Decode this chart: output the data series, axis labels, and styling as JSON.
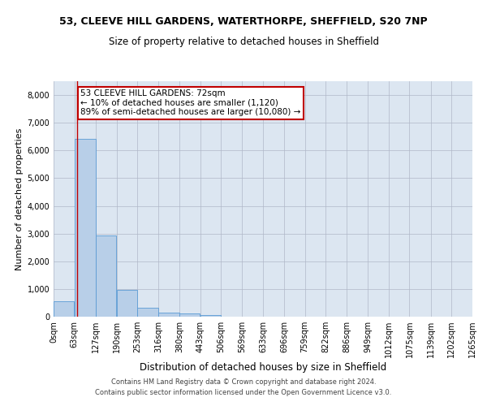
{
  "title_line1": "53, CLEEVE HILL GARDENS, WATERTHORPE, SHEFFIELD, S20 7NP",
  "title_line2": "Size of property relative to detached houses in Sheffield",
  "xlabel": "Distribution of detached houses by size in Sheffield",
  "ylabel": "Number of detached properties",
  "footer_line1": "Contains HM Land Registry data © Crown copyright and database right 2024.",
  "footer_line2": "Contains public sector information licensed under the Open Government Licence v3.0.",
  "bar_values": [
    550,
    6430,
    2920,
    960,
    330,
    155,
    105,
    65,
    0,
    0,
    0,
    0,
    0,
    0,
    0,
    0,
    0,
    0,
    0,
    0
  ],
  "bin_edges": [
    0,
    63,
    127,
    190,
    253,
    316,
    380,
    443,
    506,
    569,
    633,
    696,
    759,
    822,
    886,
    949,
    1012,
    1075,
    1139,
    1202,
    1265
  ],
  "bin_labels": [
    "0sqm",
    "63sqm",
    "127sqm",
    "190sqm",
    "253sqm",
    "316sqm",
    "380sqm",
    "443sqm",
    "506sqm",
    "569sqm",
    "633sqm",
    "696sqm",
    "759sqm",
    "822sqm",
    "886sqm",
    "949sqm",
    "1012sqm",
    "1075sqm",
    "1139sqm",
    "1202sqm",
    "1265sqm"
  ],
  "ylim": [
    0,
    8500
  ],
  "yticks": [
    0,
    1000,
    2000,
    3000,
    4000,
    5000,
    6000,
    7000,
    8000
  ],
  "property_size": 72,
  "annotation_line1": "53 CLEEVE HILL GARDENS: 72sqm",
  "annotation_line2": "← 10% of detached houses are smaller (1,120)",
  "annotation_line3": "89% of semi-detached houses are larger (10,080) →",
  "vline_x": 72,
  "bar_color": "#b8cfe8",
  "bar_edge_color": "#5b9bd5",
  "vline_color": "#c00000",
  "annotation_box_color": "#c00000",
  "background_color": "#ffffff",
  "ax_background_color": "#dce6f1",
  "grid_color": "#b0b8c8",
  "title_fontsize": 9,
  "subtitle_fontsize": 8.5,
  "ylabel_fontsize": 8,
  "xlabel_fontsize": 8.5,
  "annotation_fontsize": 7.5,
  "tick_fontsize": 7,
  "footer_fontsize": 6
}
